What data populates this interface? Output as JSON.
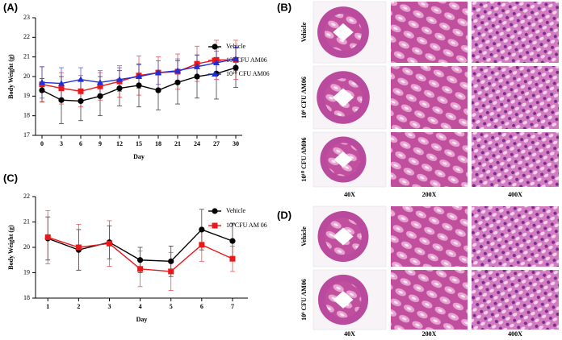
{
  "chart_data": [
    {
      "type": "line",
      "panel_label": "(A)",
      "x_label": "Day",
      "y_label": "Body Weight (g)",
      "x": [
        0,
        3,
        6,
        9,
        12,
        15,
        18,
        21,
        24,
        27,
        30
      ],
      "xlim": [
        -1,
        31
      ],
      "xticks": [
        0,
        3,
        6,
        9,
        12,
        15,
        18,
        21,
        24,
        27,
        30
      ],
      "ylim": [
        17,
        23
      ],
      "yticks": [
        17,
        18,
        19,
        20,
        21,
        22,
        23
      ],
      "series": [
        {
          "name": "Vehicle",
          "color": "#000000",
          "marker": "circle",
          "values": [
            19.3,
            18.8,
            18.75,
            19.0,
            19.4,
            19.55,
            19.3,
            19.7,
            20.0,
            20.15,
            20.45
          ],
          "errors": [
            0.6,
            1.2,
            1.0,
            1.0,
            0.9,
            1.1,
            1.0,
            1.1,
            1.1,
            1.3,
            1.0
          ]
        },
        {
          "name": "10⁹ CFU AM06",
          "color": "#e8191b",
          "marker": "square",
          "values": [
            19.6,
            19.4,
            19.25,
            19.5,
            19.75,
            20.05,
            20.2,
            20.25,
            20.65,
            20.85,
            20.85
          ],
          "errors": [
            0.9,
            0.8,
            0.8,
            0.7,
            0.8,
            1.0,
            0.8,
            0.9,
            0.9,
            1.0,
            1.0
          ]
        },
        {
          "name": "10¹⁰ CFU AM06",
          "color": "#1f2fd6",
          "marker": "triangle",
          "values": [
            19.7,
            19.65,
            19.85,
            19.7,
            19.85,
            20.0,
            20.2,
            20.3,
            20.5,
            20.7,
            20.9
          ],
          "errors": [
            0.8,
            0.8,
            0.6,
            0.6,
            0.6,
            0.6,
            0.6,
            0.6,
            0.6,
            0.6,
            0.6
          ]
        }
      ]
    },
    {
      "type": "line",
      "panel_label": "(C)",
      "x_label": "Day",
      "y_label": "Body Weight (g)",
      "x": [
        1,
        2,
        3,
        4,
        5,
        6,
        7
      ],
      "xlim": [
        0.6,
        7.5
      ],
      "xticks": [
        1,
        2,
        3,
        4,
        5,
        6,
        7
      ],
      "ylim": [
        18,
        22
      ],
      "yticks": [
        18,
        19,
        20,
        21,
        22
      ],
      "series": [
        {
          "name": "Vehicle",
          "color": "#000000",
          "marker": "circle",
          "values": [
            20.35,
            19.9,
            20.2,
            19.5,
            19.45,
            20.7,
            20.25
          ],
          "errors": [
            0.85,
            0.8,
            0.65,
            0.5,
            0.6,
            0.8,
            0.7
          ]
        },
        {
          "name": "10⁹CFU AM 06",
          "color": "#e8191b",
          "marker": "square",
          "values": [
            20.4,
            20.0,
            20.15,
            19.15,
            19.05,
            20.1,
            19.55
          ],
          "errors": [
            1.05,
            0.9,
            0.9,
            0.7,
            0.75,
            0.65,
            0.5
          ]
        }
      ]
    }
  ],
  "histology": [
    {
      "panel_label": "(B)",
      "rows": [
        "Vehicle",
        "10⁹ CFU AM06",
        "10¹⁰ CFU AM06"
      ],
      "columns": [
        "40X",
        "200X",
        "400X"
      ]
    },
    {
      "panel_label": "(D)",
      "rows": [
        "Vehicle",
        "10⁹ CFU AM06"
      ],
      "columns": [
        "40X",
        "200X",
        "400X"
      ]
    }
  ]
}
